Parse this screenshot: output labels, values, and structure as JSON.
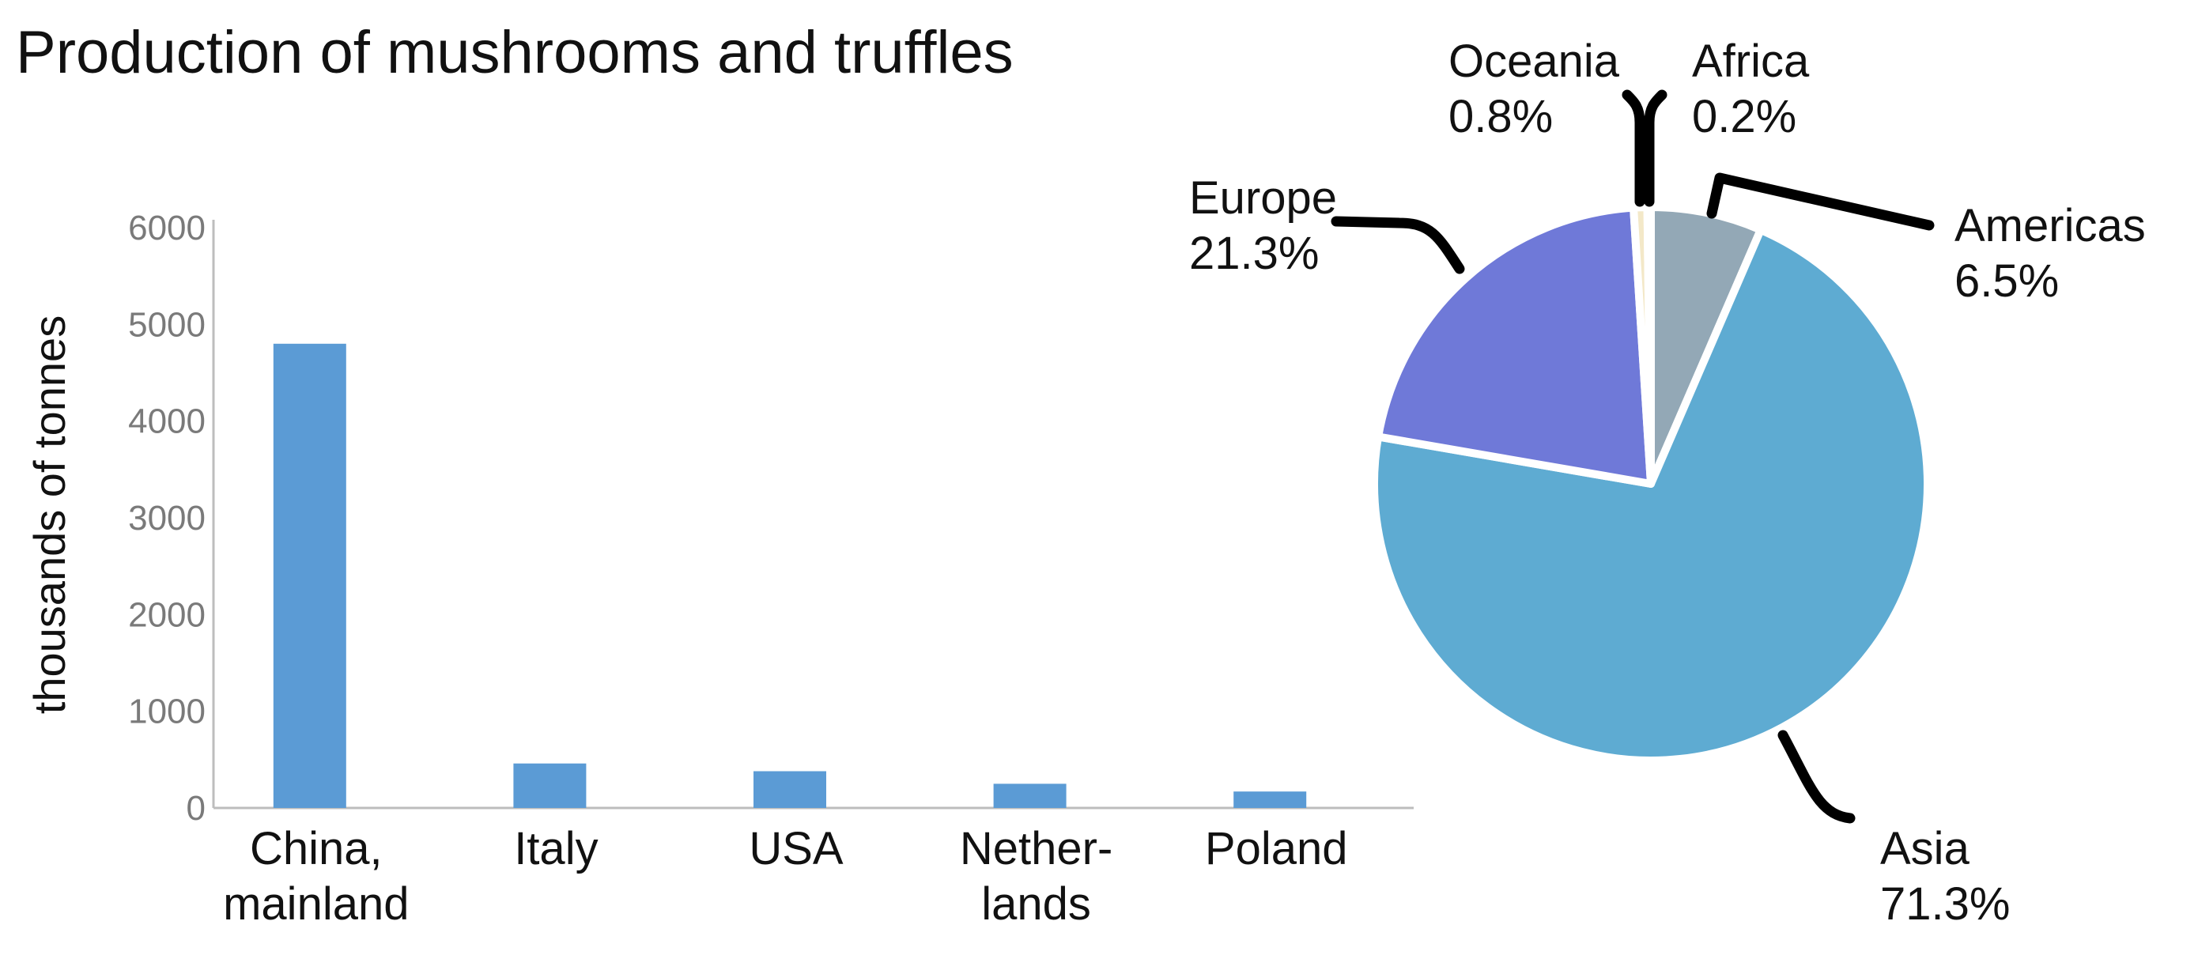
{
  "chart_data": [
    {
      "type": "bar",
      "title": "Production of mushrooms and truffles",
      "ylabel": "thousands of tonnes",
      "xlabel": "",
      "ylim": [
        0,
        6000
      ],
      "yticks": [
        "0",
        "1000",
        "2000",
        "3000",
        "4000",
        "5000",
        "6000"
      ],
      "categories": [
        [
          "China,",
          "mainland"
        ],
        [
          "Italy"
        ],
        [
          "USA"
        ],
        [
          "Nether-",
          "lands"
        ],
        [
          "Poland"
        ]
      ],
      "values": [
        4800,
        460,
        380,
        250,
        170
      ],
      "color": "#5b9bd5",
      "grid": false
    },
    {
      "type": "pie",
      "slices": [
        {
          "name": "Americas",
          "percent_label": "6.5%",
          "value": 6.5,
          "color": "#93a8b6"
        },
        {
          "name": "Asia",
          "percent_label": "71.3%",
          "value": 71.3,
          "color": "#5eabd2"
        },
        {
          "name": "Europe",
          "percent_label": "21.3%",
          "value": 21.3,
          "color": "#6f79d8"
        },
        {
          "name": "Oceania",
          "percent_label": "0.8%",
          "value": 0.8,
          "color": "#f3e8c8"
        },
        {
          "name": "Africa",
          "percent_label": "0.2%",
          "value": 0.2,
          "color": "#e8b27a"
        }
      ]
    }
  ]
}
